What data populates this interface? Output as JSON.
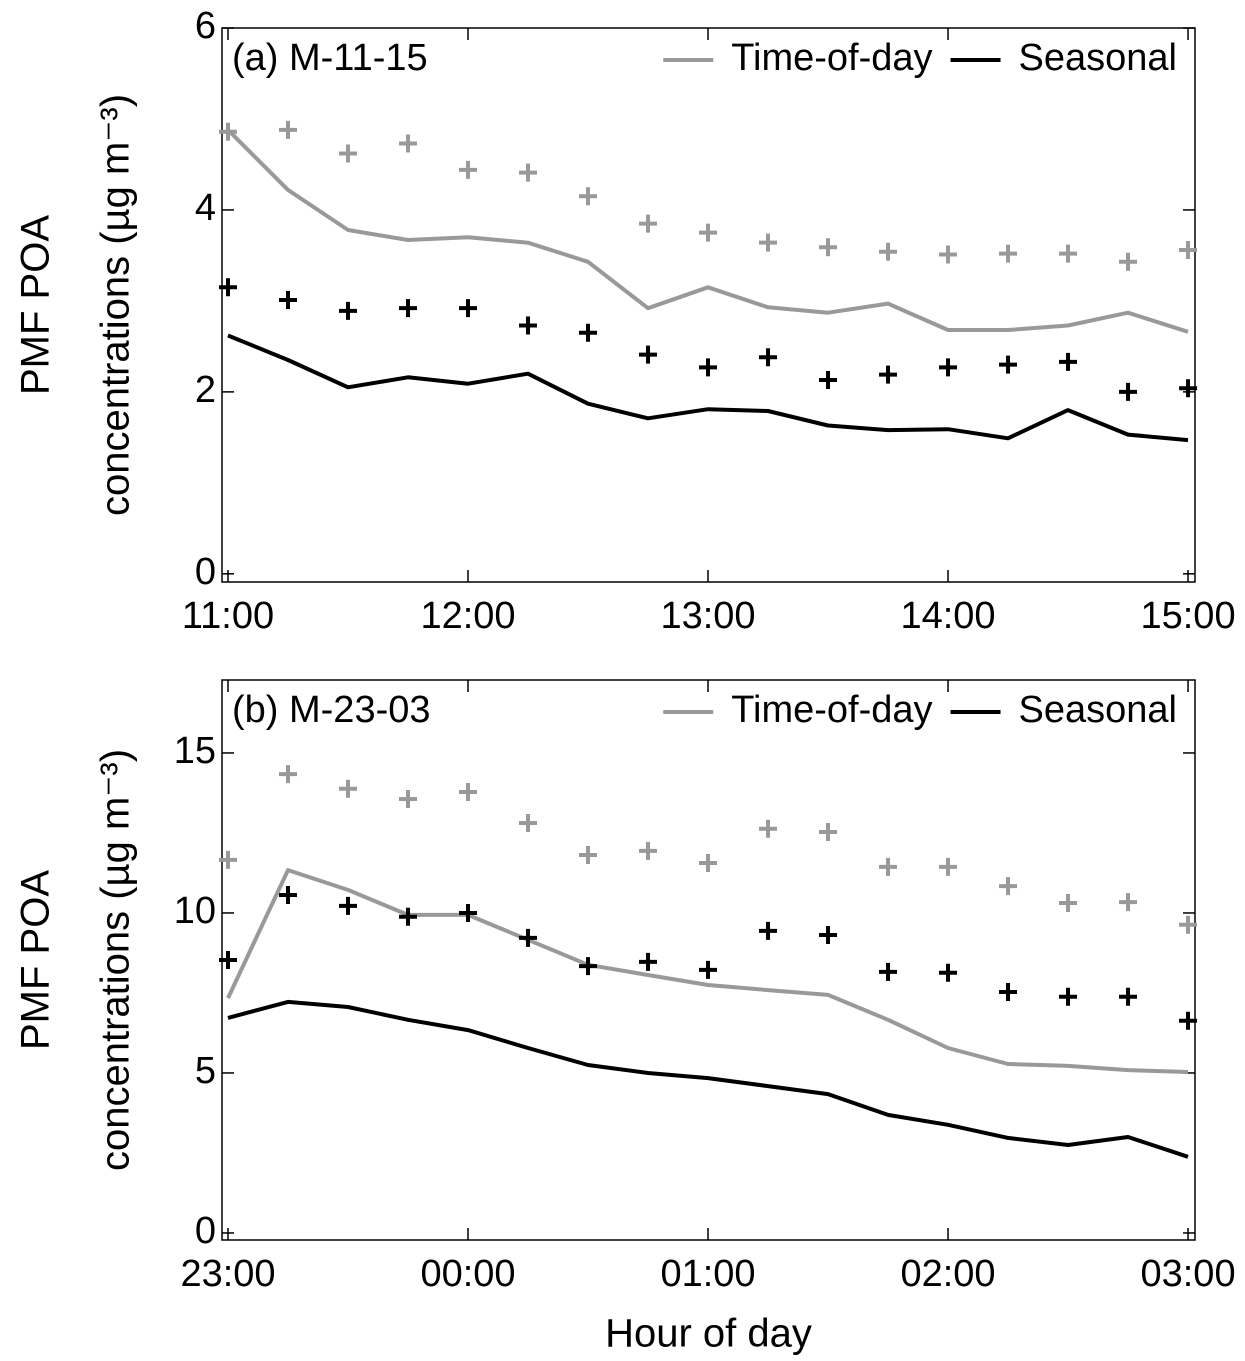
{
  "chart_data": [
    {
      "type": "line",
      "annotation": "(a) M-11-15",
      "ylabel": [
        "PMF POA",
        "concentrations (µg m⁻³)"
      ],
      "x": [
        11,
        11.25,
        11.5,
        11.75,
        12,
        12.25,
        12.5,
        12.75,
        13,
        13.25,
        13.5,
        13.75,
        14,
        14.25,
        14.5,
        14.75,
        15
      ],
      "xlim": [
        10.975,
        15.029
      ],
      "xticks": [
        {
          "value": 11,
          "label": "11:00"
        },
        {
          "value": 12,
          "label": "12:00"
        },
        {
          "value": 13,
          "label": "13:00"
        },
        {
          "value": 14,
          "label": "14:00"
        },
        {
          "value": 15,
          "label": "15:00"
        }
      ],
      "ylim": [
        -0.09,
        6
      ],
      "yticks": [
        0,
        2,
        4,
        6
      ],
      "legend": "upper right",
      "series": [
        {
          "name": "Time-of-day",
          "color": "#999999",
          "marker": "line",
          "values": [
            4.88,
            4.22,
            3.78,
            3.67,
            3.7,
            3.64,
            3.43,
            2.92,
            3.15,
            2.93,
            2.87,
            2.97,
            2.68,
            2.68,
            2.73,
            2.87,
            2.66
          ]
        },
        {
          "name": "Seasonal",
          "color": "#000000",
          "marker": "line",
          "values": [
            2.62,
            2.35,
            2.05,
            2.16,
            2.09,
            2.2,
            1.87,
            1.71,
            1.81,
            1.79,
            1.63,
            1.58,
            1.59,
            1.49,
            1.8,
            1.53,
            1.47
          ]
        },
        {
          "color": "#999999",
          "marker": "plus",
          "values": [
            4.86,
            4.88,
            4.62,
            4.73,
            4.44,
            4.41,
            4.15,
            3.85,
            3.75,
            3.64,
            3.59,
            3.54,
            3.51,
            3.52,
            3.52,
            3.43,
            3.56
          ]
        },
        {
          "color": "#000000",
          "marker": "plus",
          "values": [
            3.15,
            3.01,
            2.89,
            2.92,
            2.92,
            2.73,
            2.65,
            2.41,
            2.27,
            2.38,
            2.13,
            2.19,
            2.27,
            2.3,
            2.33,
            2.0,
            2.04
          ]
        }
      ]
    },
    {
      "type": "line",
      "annotation": "(b) M-23-03",
      "ylabel": [
        "PMF POA",
        "concentrations (µg m⁻³)"
      ],
      "xlabel": "Hour of day",
      "x": [
        23,
        23.25,
        23.5,
        23.75,
        24,
        24.25,
        24.5,
        24.75,
        25,
        25.25,
        25.5,
        25.75,
        26,
        26.25,
        26.5,
        26.75,
        27
      ],
      "xlim": [
        22.975,
        27.029
      ],
      "xticks": [
        {
          "value": 23,
          "label": "23:00"
        },
        {
          "value": 24,
          "label": "00:00"
        },
        {
          "value": 25,
          "label": "01:00"
        },
        {
          "value": 26,
          "label": "02:00"
        },
        {
          "value": 27,
          "label": "03:00"
        }
      ],
      "ylim": [
        -0.22,
        17.28
      ],
      "yticks": [
        0,
        5,
        10,
        15
      ],
      "legend": "upper right",
      "series": [
        {
          "name": "Time-of-day",
          "color": "#999999",
          "marker": "line",
          "values": [
            7.34,
            11.34,
            10.72,
            9.94,
            9.94,
            9.16,
            8.38,
            8.06,
            7.75,
            7.59,
            7.44,
            6.66,
            5.78,
            5.28,
            5.22,
            5.09,
            5.03
          ]
        },
        {
          "name": "Seasonal",
          "color": "#000000",
          "marker": "line",
          "values": [
            6.72,
            7.22,
            7.06,
            6.66,
            6.34,
            5.78,
            5.25,
            5.0,
            4.84,
            4.59,
            4.34,
            3.69,
            3.38,
            2.97,
            2.75,
            3.0,
            2.38
          ]
        },
        {
          "color": "#999999",
          "marker": "plus",
          "values": [
            11.66,
            14.34,
            13.88,
            13.56,
            13.78,
            12.81,
            11.81,
            11.94,
            11.56,
            12.63,
            12.53,
            11.44,
            11.44,
            10.84,
            10.31,
            10.34,
            9.63
          ]
        },
        {
          "color": "#000000",
          "marker": "plus",
          "values": [
            8.53,
            10.56,
            10.22,
            9.88,
            10.0,
            9.22,
            8.34,
            8.47,
            8.22,
            9.44,
            9.31,
            8.16,
            8.13,
            7.53,
            7.38,
            7.38,
            6.63
          ]
        }
      ]
    }
  ]
}
